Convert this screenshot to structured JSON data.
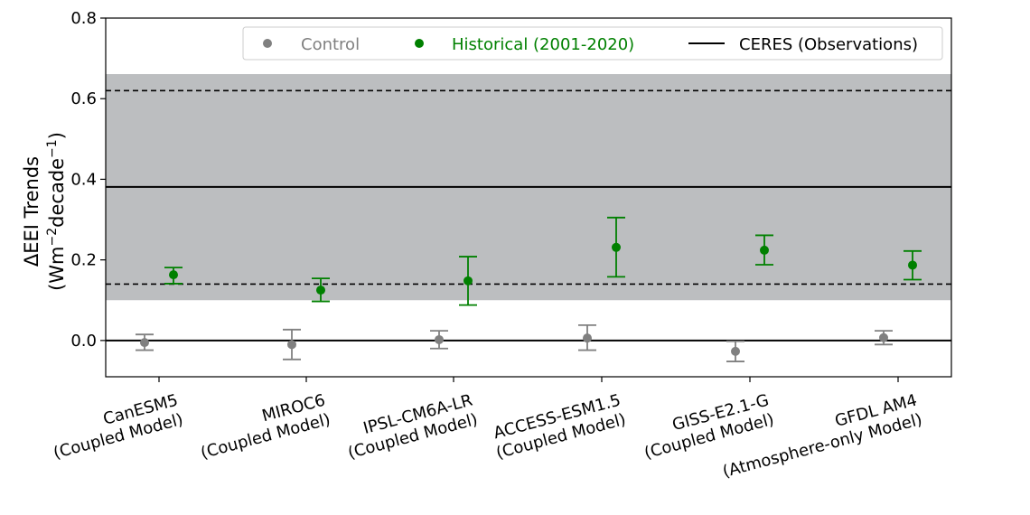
{
  "chart_data": {
    "type": "scatter",
    "ylabel": "ΔEEI Trends",
    "ylabel_line2_prefix": "(Wm",
    "ylabel_sup1": "−2",
    "ylabel_line2_mid": "decade",
    "ylabel_sup2": "−1",
    "ylabel_line2_suffix": ")",
    "ylim": [
      -0.09,
      0.8
    ],
    "yticks": [
      0.0,
      0.2,
      0.4,
      0.6,
      0.8
    ],
    "ytick_labels": [
      "0.0",
      "0.2",
      "0.4",
      "0.6",
      "0.8"
    ],
    "grid": false,
    "legend_position": "top-right",
    "categories": [
      [
        "CanESM5",
        "(Coupled Model)"
      ],
      [
        "MIROC6",
        "(Coupled Model)"
      ],
      [
        "IPSL-CM6A-LR",
        "(Coupled Model)"
      ],
      [
        "ACCESS-ESM1.5",
        "(Coupled Model)"
      ],
      [
        "GISS-E2.1-G",
        "(Coupled Model)"
      ],
      [
        "GFDL AM4",
        "(Atmosphere-only Model)"
      ]
    ],
    "series": [
      {
        "name": "Control",
        "color": "#808080",
        "values": [
          -0.005,
          -0.01,
          0.002,
          0.006,
          -0.027,
          0.007
        ],
        "err_low": [
          -0.024,
          -0.047,
          -0.02,
          -0.024,
          -0.052,
          -0.01
        ],
        "err_high": [
          0.015,
          0.027,
          0.024,
          0.038,
          -0.002,
          0.024
        ]
      },
      {
        "name": "Historical (2001-2020)",
        "color": "#008000",
        "values": [
          0.163,
          0.125,
          0.148,
          0.231,
          0.224,
          0.187
        ],
        "err_low": [
          0.141,
          0.097,
          0.088,
          0.158,
          0.188,
          0.151
        ],
        "err_high": [
          0.181,
          0.154,
          0.208,
          0.305,
          0.261,
          0.222
        ]
      }
    ],
    "observations": {
      "name": "CERES (Observations)",
      "color": "#000000",
      "value": 0.381,
      "dashed_low": 0.14,
      "dashed_high": 0.62,
      "band_low": 0.1,
      "band_high": 0.661,
      "band_color": "#bcbec0"
    },
    "zero_line": 0.0
  }
}
